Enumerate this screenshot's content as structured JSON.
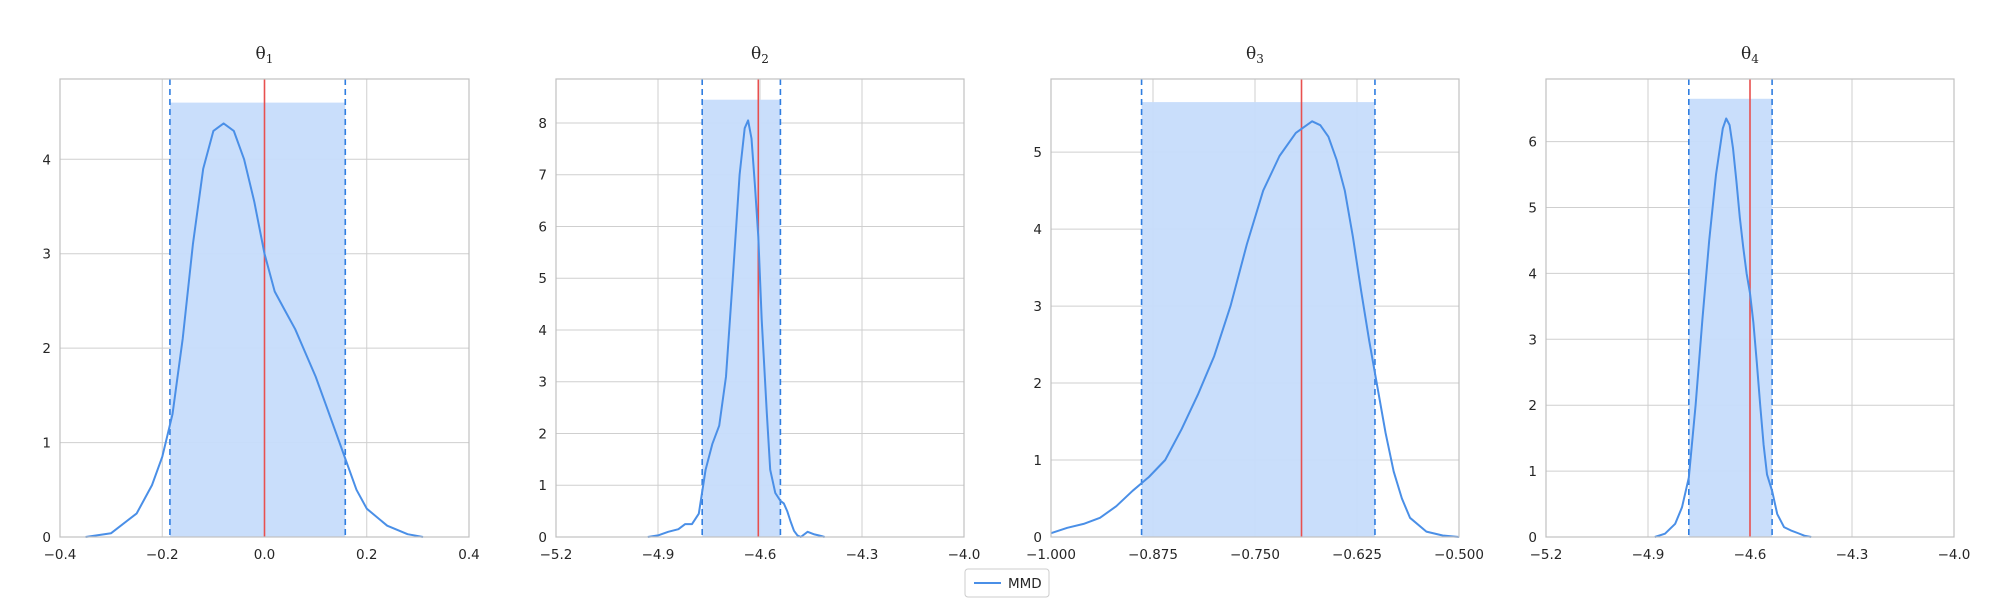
{
  "colors": {
    "kde": "#4a8fe7",
    "interval_fill": "#c6dcfb",
    "interval_line": "#2f7de0",
    "true_line": "#e8504f",
    "grid": "#cfcfcf",
    "frame": "#c0c0c0"
  },
  "legend": {
    "label": "MMD",
    "placement": "bottom-center"
  },
  "chart_data": [
    {
      "type": "line",
      "title": "θ",
      "title_subscript": "1",
      "xlim": [
        -0.4,
        0.4
      ],
      "ylim": [
        0,
        4.85
      ],
      "xticks": [
        -0.4,
        -0.2,
        0.0,
        0.2,
        0.4
      ],
      "xtick_labels": [
        "−0.4",
        "−0.2",
        "0.0",
        "0.2",
        "0.4"
      ],
      "yticks": [
        0,
        1,
        2,
        3,
        4
      ],
      "ytick_labels": [
        "0",
        "1",
        "2",
        "3",
        "4"
      ],
      "interval": {
        "lo": -0.185,
        "hi": 0.158,
        "top": 4.6
      },
      "true_value": 0.0,
      "series": [
        {
          "name": "MMD",
          "x": [
            -0.35,
            -0.3,
            -0.25,
            -0.22,
            -0.2,
            -0.18,
            -0.16,
            -0.14,
            -0.12,
            -0.1,
            -0.08,
            -0.06,
            -0.04,
            -0.02,
            0.0,
            0.02,
            0.04,
            0.06,
            0.08,
            0.1,
            0.12,
            0.14,
            0.16,
            0.18,
            0.2,
            0.24,
            0.28,
            0.31
          ],
          "y": [
            0.0,
            0.04,
            0.25,
            0.55,
            0.85,
            1.3,
            2.1,
            3.1,
            3.9,
            4.3,
            4.38,
            4.3,
            4.0,
            3.55,
            3.0,
            2.6,
            2.4,
            2.2,
            1.95,
            1.7,
            1.4,
            1.1,
            0.8,
            0.5,
            0.3,
            0.12,
            0.03,
            0.0
          ]
        }
      ]
    },
    {
      "type": "line",
      "title": "θ",
      "title_subscript": "2",
      "xlim": [
        -5.2,
        -4.0
      ],
      "ylim": [
        0,
        8.85
      ],
      "xticks": [
        -5.2,
        -4.9,
        -4.6,
        -4.3,
        -4.0
      ],
      "xtick_labels": [
        "−5.2",
        "−4.9",
        "−4.6",
        "−4.3",
        "−4.0"
      ],
      "yticks": [
        0,
        1,
        2,
        3,
        4,
        5,
        6,
        7,
        8
      ],
      "ytick_labels": [
        "0",
        "1",
        "2",
        "3",
        "4",
        "5",
        "6",
        "7",
        "8"
      ],
      "interval": {
        "lo": -4.77,
        "hi": -4.54,
        "top": 8.45
      },
      "true_value": -4.605,
      "series": [
        {
          "name": "MMD",
          "x": [
            -4.93,
            -4.9,
            -4.87,
            -4.84,
            -4.82,
            -4.8,
            -4.78,
            -4.76,
            -4.74,
            -4.72,
            -4.7,
            -4.68,
            -4.66,
            -4.645,
            -4.635,
            -4.625,
            -4.615,
            -4.605,
            -4.595,
            -4.58,
            -4.57,
            -4.555,
            -4.54,
            -4.53,
            -4.52,
            -4.51,
            -4.5,
            -4.49,
            -4.48,
            -4.46,
            -4.44,
            -4.42,
            -4.41
          ],
          "y": [
            0.0,
            0.03,
            0.1,
            0.15,
            0.25,
            0.25,
            0.45,
            1.3,
            1.8,
            2.15,
            3.1,
            5.0,
            7.0,
            7.9,
            8.05,
            7.7,
            6.8,
            5.8,
            4.2,
            2.4,
            1.3,
            0.85,
            0.7,
            0.65,
            0.5,
            0.3,
            0.12,
            0.03,
            0.0,
            0.1,
            0.05,
            0.02,
            0.0
          ]
        }
      ]
    },
    {
      "type": "line",
      "title": "θ",
      "title_subscript": "3",
      "xlim": [
        -1.0,
        -0.5
      ],
      "ylim": [
        0,
        5.95
      ],
      "xticks": [
        -1.0,
        -0.875,
        -0.75,
        -0.625,
        -0.5
      ],
      "xtick_labels": [
        "−1.000",
        "−0.875",
        "−0.750",
        "−0.625",
        "−0.500"
      ],
      "yticks": [
        0,
        1,
        2,
        3,
        4,
        5
      ],
      "ytick_labels": [
        "0",
        "1",
        "2",
        "3",
        "4",
        "5"
      ],
      "interval": {
        "lo": -0.889,
        "hi": -0.603,
        "top": 5.65
      },
      "true_value": -0.693,
      "series": [
        {
          "name": "MMD",
          "x": [
            -1.0,
            -0.98,
            -0.96,
            -0.94,
            -0.92,
            -0.9,
            -0.88,
            -0.86,
            -0.84,
            -0.82,
            -0.8,
            -0.78,
            -0.76,
            -0.74,
            -0.72,
            -0.7,
            -0.68,
            -0.67,
            -0.66,
            -0.65,
            -0.64,
            -0.63,
            -0.62,
            -0.61,
            -0.6,
            -0.59,
            -0.58,
            -0.57,
            -0.56,
            -0.54,
            -0.52,
            -0.5
          ],
          "y": [
            0.05,
            0.12,
            0.17,
            0.25,
            0.4,
            0.6,
            0.78,
            1.0,
            1.4,
            1.85,
            2.35,
            3.0,
            3.8,
            4.5,
            4.95,
            5.25,
            5.4,
            5.35,
            5.2,
            4.9,
            4.5,
            3.9,
            3.2,
            2.55,
            1.95,
            1.35,
            0.85,
            0.5,
            0.25,
            0.07,
            0.02,
            0.0
          ]
        }
      ]
    },
    {
      "type": "line",
      "title": "θ",
      "title_subscript": "4",
      "xlim": [
        -5.2,
        -4.0
      ],
      "ylim": [
        0,
        6.95
      ],
      "xticks": [
        -5.2,
        -4.9,
        -4.6,
        -4.3,
        -4.0
      ],
      "xtick_labels": [
        "−5.2",
        "−4.9",
        "−4.6",
        "−4.3",
        "−4.0"
      ],
      "yticks": [
        0,
        1,
        2,
        3,
        4,
        5,
        6
      ],
      "ytick_labels": [
        "0",
        "1",
        "2",
        "3",
        "4",
        "5",
        "6"
      ],
      "interval": {
        "lo": -4.78,
        "hi": -4.535,
        "top": 6.65
      },
      "true_value": -4.6,
      "series": [
        {
          "name": "MMD",
          "x": [
            -4.88,
            -4.85,
            -4.82,
            -4.8,
            -4.78,
            -4.76,
            -4.74,
            -4.72,
            -4.7,
            -4.68,
            -4.67,
            -4.66,
            -4.65,
            -4.64,
            -4.63,
            -4.62,
            -4.61,
            -4.6,
            -4.59,
            -4.58,
            -4.57,
            -4.56,
            -4.55,
            -4.535,
            -4.52,
            -4.5,
            -4.48,
            -4.46,
            -4.44,
            -4.42
          ],
          "y": [
            0.0,
            0.05,
            0.2,
            0.45,
            0.9,
            2.0,
            3.3,
            4.5,
            5.5,
            6.2,
            6.35,
            6.25,
            5.9,
            5.4,
            4.85,
            4.4,
            4.0,
            3.7,
            3.25,
            2.65,
            2.0,
            1.4,
            0.95,
            0.7,
            0.35,
            0.15,
            0.1,
            0.06,
            0.02,
            0.0
          ]
        }
      ]
    }
  ]
}
